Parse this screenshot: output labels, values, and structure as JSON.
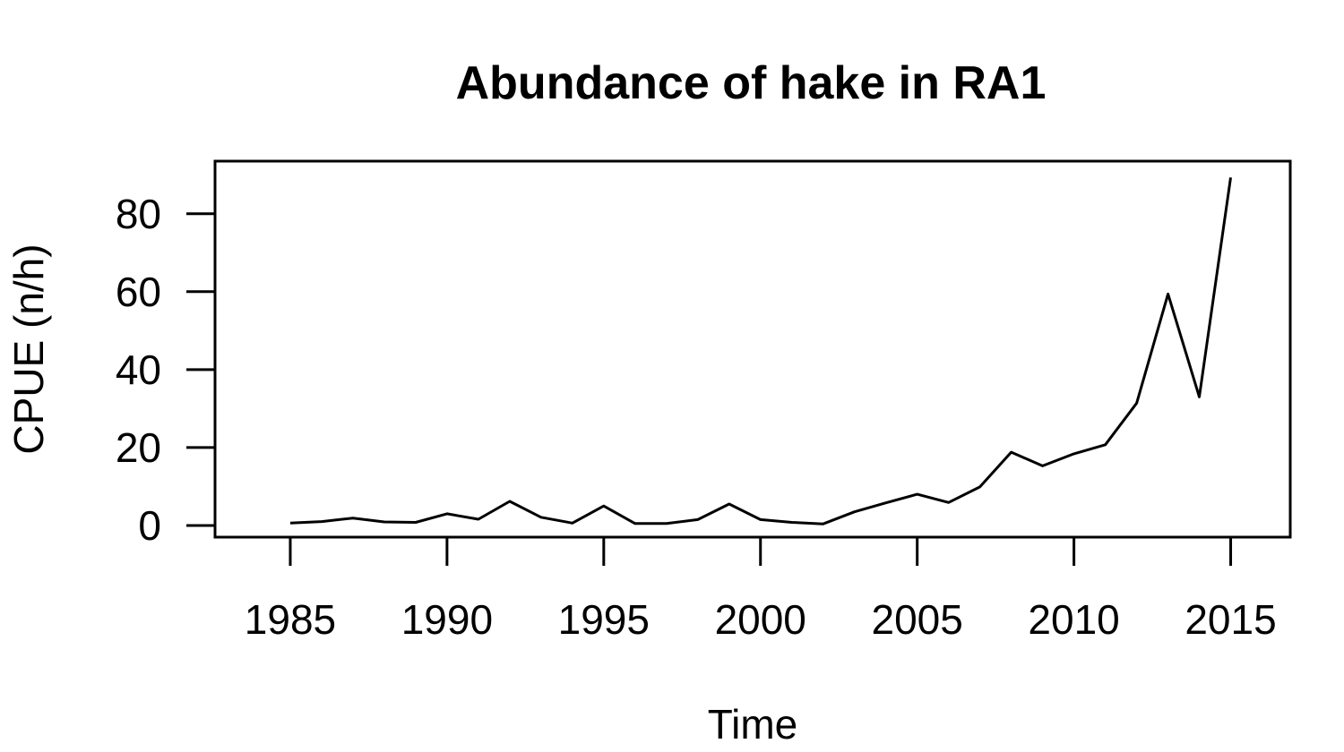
{
  "chart_data": {
    "type": "line",
    "title": "Abundance of hake in RA1",
    "xlabel": "Time",
    "ylabel": "CPUE (n/h)",
    "xlim": [
      1982.6,
      2016.9
    ],
    "ylim": [
      -3.0,
      93.5
    ],
    "x_ticks": [
      1985,
      1990,
      1995,
      2000,
      2005,
      2010,
      2015
    ],
    "y_ticks": [
      0,
      20,
      40,
      60,
      80
    ],
    "grid": false,
    "legend": "none",
    "series": [
      {
        "color": "#000000",
        "x": [
          1985,
          1986,
          1987,
          1988,
          1989,
          1990,
          1991,
          1992,
          1993,
          1994,
          1995,
          1996,
          1997,
          1998,
          1999,
          2000,
          2001,
          2002,
          2003,
          2004,
          2005,
          2006,
          2007,
          2008,
          2009,
          2010,
          2011,
          2012,
          2013,
          2014,
          2015
        ],
        "y": [
          0.6,
          1.0,
          1.9,
          0.9,
          0.8,
          3.0,
          1.6,
          6.2,
          2.1,
          0.6,
          5.0,
          0.5,
          0.5,
          1.5,
          5.5,
          1.5,
          0.8,
          0.4,
          3.5,
          5.8,
          8.0,
          5.9,
          9.9,
          18.8,
          15.3,
          18.4,
          20.7,
          31.4,
          59.4,
          33.0,
          89.3
        ]
      }
    ]
  }
}
